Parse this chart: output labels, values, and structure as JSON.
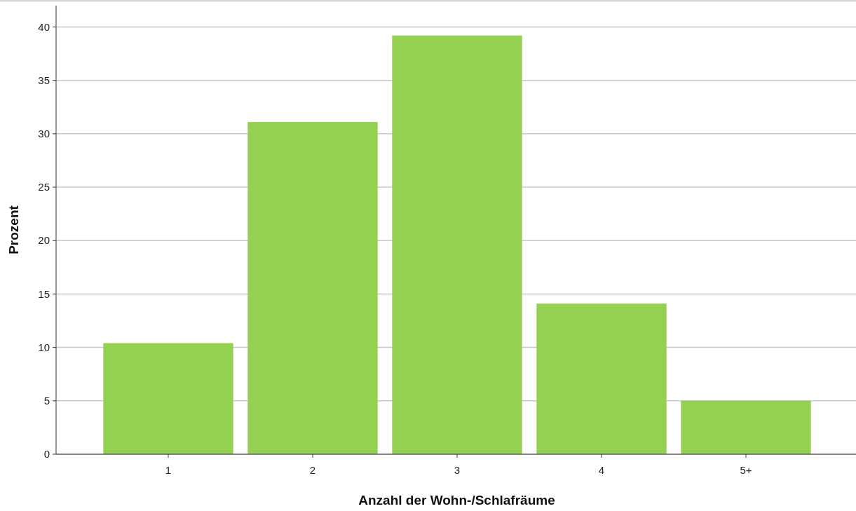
{
  "chart_data": {
    "type": "bar",
    "xlabel": "Anzahl der Wohn-/Schlafräume",
    "ylabel": "Prozent",
    "categories": [
      "1",
      "2",
      "3",
      "4",
      "5+"
    ],
    "values": [
      10.4,
      31.1,
      39.2,
      14.1,
      5.0
    ],
    "color": "#94d153",
    "ylim": [
      0,
      42
    ],
    "yticks": [
      0,
      5,
      10,
      15,
      20,
      25,
      30,
      35,
      40
    ],
    "grid": "y"
  }
}
